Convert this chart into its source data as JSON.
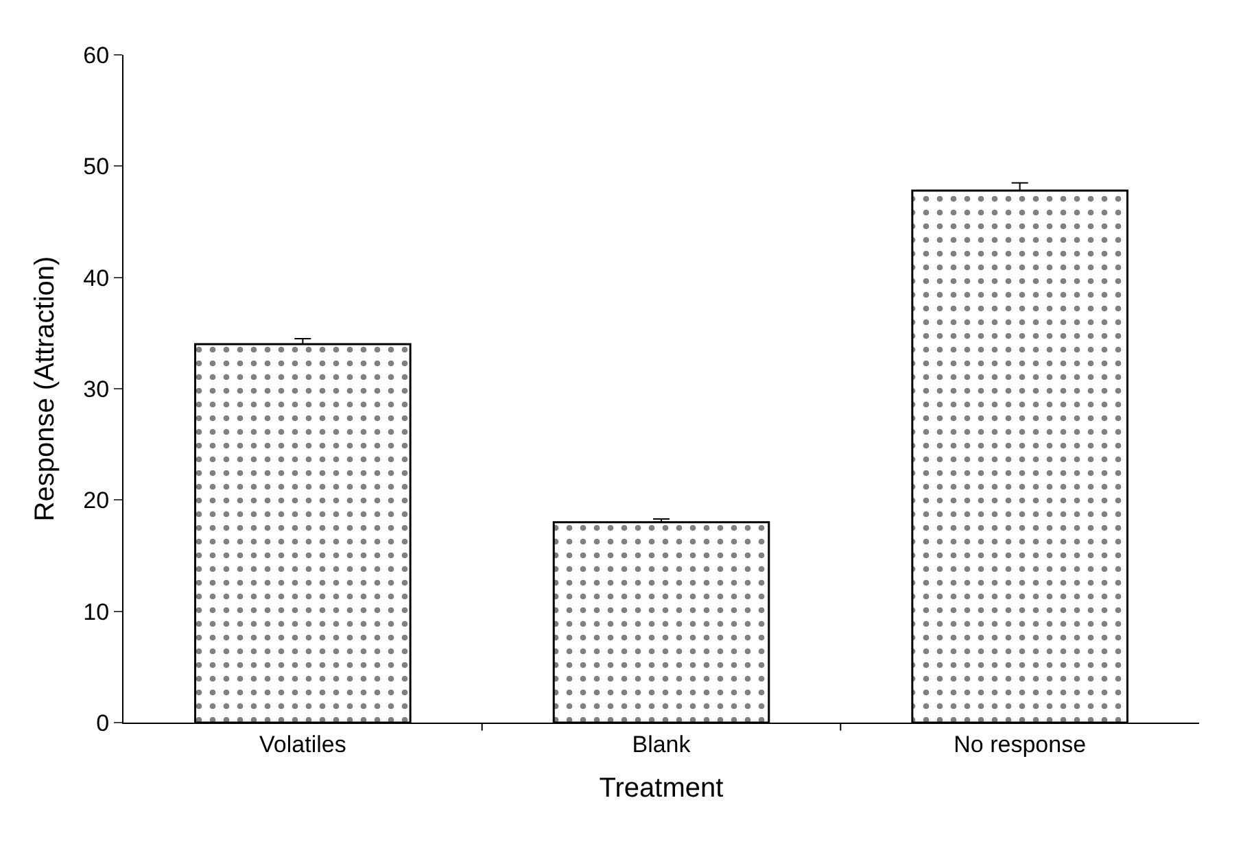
{
  "chart_data": {
    "type": "bar",
    "xlabel": "Treatment",
    "ylabel": "Response (Attraction)",
    "categories": [
      "Volatiles",
      "Blank",
      "No response"
    ],
    "values": [
      34,
      18,
      47.8
    ],
    "errors": [
      [
        34,
        34.5
      ],
      [
        18,
        18.3
      ],
      [
        47.8,
        48.5
      ]
    ],
    "color": "#000000",
    "ylim": [
      0,
      60
    ],
    "yticks": [
      0,
      10,
      20,
      30,
      40,
      50,
      60
    ]
  }
}
